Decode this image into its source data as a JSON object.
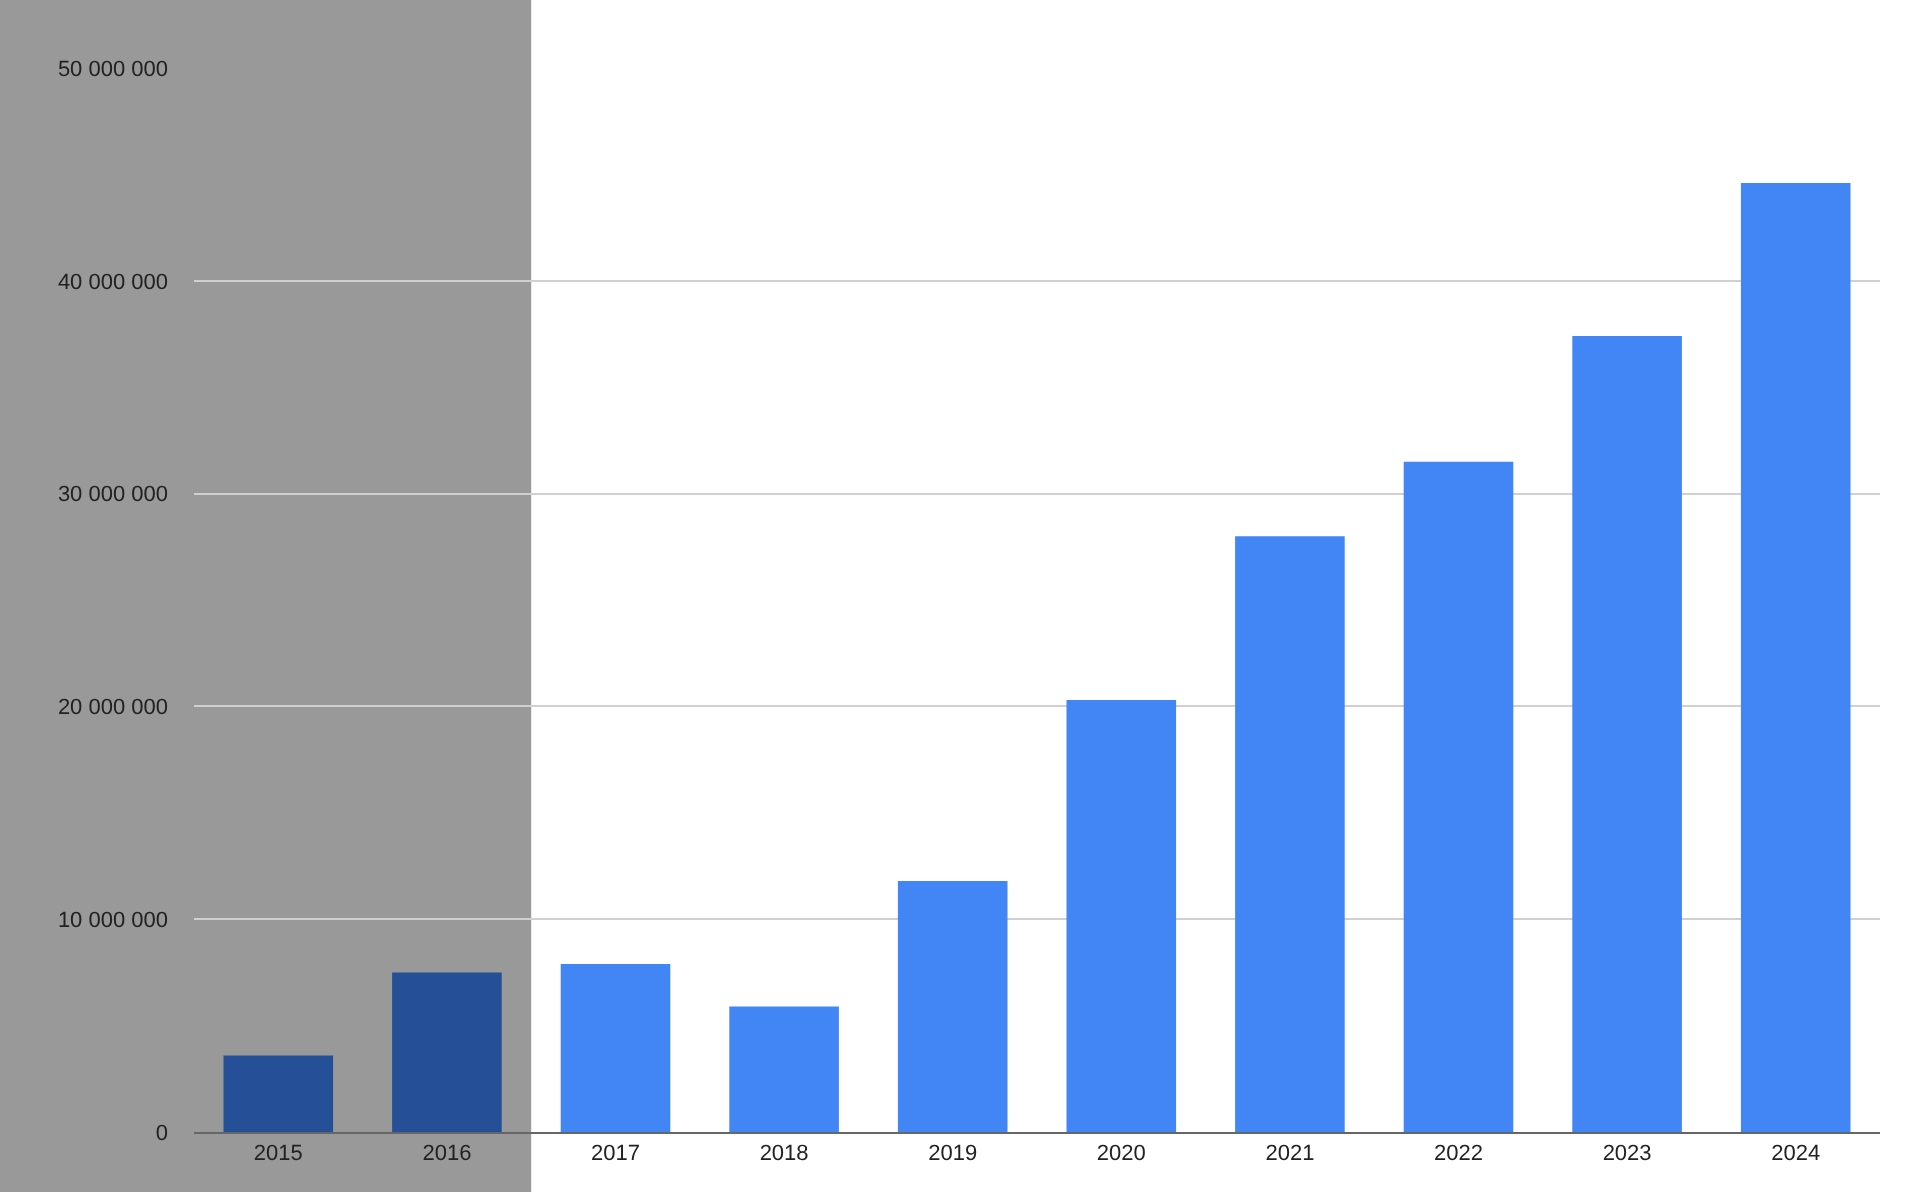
{
  "chart_data": {
    "type": "bar",
    "categories": [
      "2015",
      "2016",
      "2017",
      "2018",
      "2019",
      "2020",
      "2021",
      "2022",
      "2023",
      "2024"
    ],
    "values": [
      3600000,
      7500000,
      7900000,
      5900000,
      11800000,
      20300000,
      28000000,
      31500000,
      37400000,
      44600000
    ],
    "colors": [
      "#254f96",
      "#254f96",
      "#4285f4",
      "#4285f4",
      "#4285f4",
      "#4285f4",
      "#4285f4",
      "#4285f4",
      "#4285f4",
      "#4285f4"
    ],
    "ylim": [
      0,
      50000000
    ],
    "yticks": [
      {
        "value": 0,
        "label": "0"
      },
      {
        "value": 10000000,
        "label": "10 000 000"
      },
      {
        "value": 20000000,
        "label": "20 000 000"
      },
      {
        "value": 30000000,
        "label": "30 000 000"
      },
      {
        "value": 40000000,
        "label": "40 000 000"
      },
      {
        "value": 50000000,
        "label": "50 000 000"
      }
    ],
    "bands": [
      {
        "axis": "x",
        "from": "2015",
        "to": "2016",
        "color": "#999999"
      }
    ],
    "grid": "y"
  }
}
